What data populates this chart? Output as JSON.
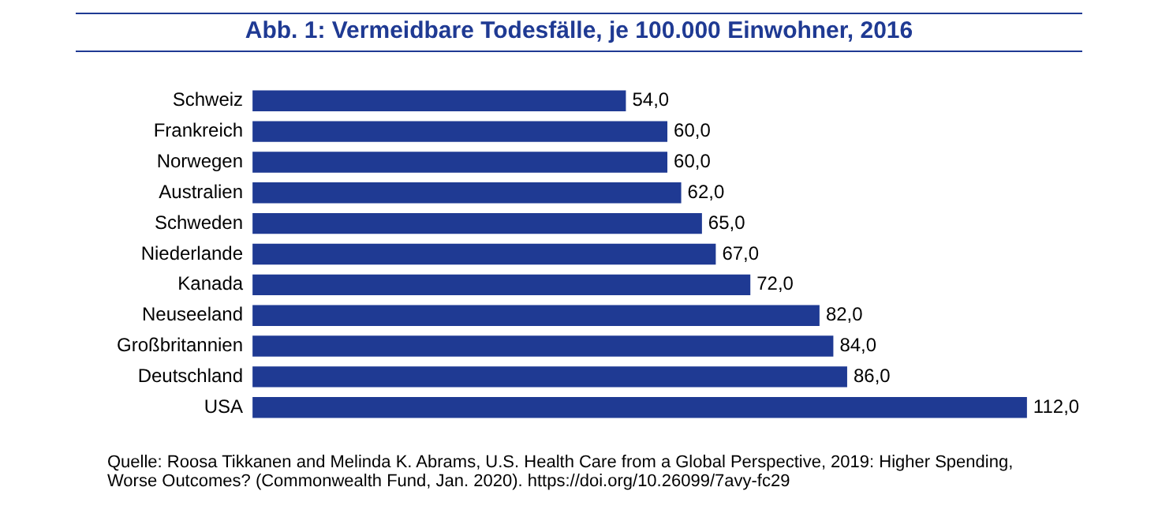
{
  "chart_data": {
    "type": "bar",
    "orientation": "horizontal",
    "title": "Abb. 1: Vermeidbare Todesfälle, je 100.000 Einwohner, 2016",
    "categories": [
      "Schweiz",
      "Frankreich",
      "Norwegen",
      "Australien",
      "Schweden",
      "Niederlande",
      "Kanada",
      "Neuseeland",
      "Großbritannien",
      "Deutschland",
      "USA"
    ],
    "values": [
      54,
      60,
      60,
      62,
      65,
      67,
      72,
      82,
      84,
      86,
      112
    ],
    "value_labels": [
      "54,0",
      "60,0",
      "60,0",
      "62,0",
      "65,0",
      "67,0",
      "72,0",
      "82,0",
      "84,0",
      "86,0",
      "112,0"
    ],
    "color": "#1f3a93",
    "grid": false,
    "legend": false,
    "annotations": [
      "Quelle: Roosa Tikkanen and Melinda K. Abrams, U.S. Health Care from a Global Perspective, 2019: Higher Spending, Worse Outcomes? (Commonwealth Fund, Jan. 2020). https://doi.org/10.26099/7avy-fc29"
    ]
  }
}
